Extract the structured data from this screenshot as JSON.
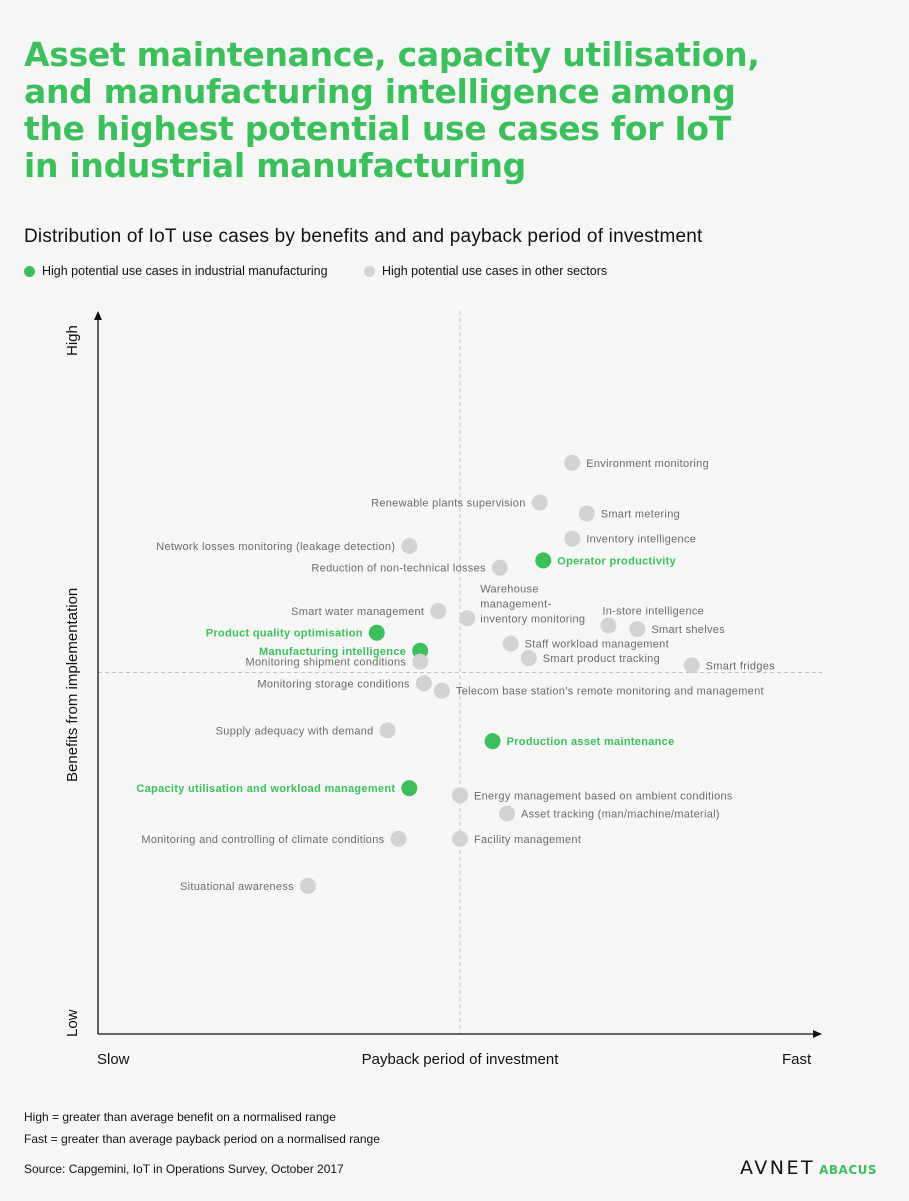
{
  "title_lines": [
    "Asset maintenance, capacity utilisation,",
    "and manufacturing intelligence among",
    "the highest potential use cases for IoT",
    "in industrial manufacturing"
  ],
  "subtitle": "Distribution of IoT use cases by benefits and and payback period of investment",
  "legend": [
    {
      "label": "High potential use cases in industrial manufacturing",
      "color": "#3cbf5c"
    },
    {
      "label": "High potential use cases in other sectors",
      "color": "#d3d3d3"
    }
  ],
  "colors": {
    "manufacturing": "#3cbf5c",
    "other": "#d3d3d3",
    "other_text": "#6b6b6b"
  },
  "chart_data": {
    "type": "scatter",
    "xlabel": "Payback period of investment",
    "ylabel": "Benefits from implementation",
    "x_ends": [
      "Slow",
      "Fast"
    ],
    "y_ends": [
      "Low",
      "High"
    ],
    "xlim": [
      0,
      100
    ],
    "ylim": [
      0,
      100
    ],
    "x_average": 50,
    "y_average": 50,
    "grid": false,
    "legend_position": "top-left",
    "series": [
      {
        "name": "High potential use cases in industrial manufacturing",
        "color": "#3cbf5c",
        "points": [
          {
            "label": "Operator productivity",
            "x": 61.5,
            "y": 65.5,
            "label_side": "right"
          },
          {
            "label": "Product quality optimisation",
            "x": 38.5,
            "y": 55.5,
            "label_side": "left"
          },
          {
            "label": "Manufacturing intelligence",
            "x": 44.5,
            "y": 53.0,
            "label_side": "left"
          },
          {
            "label": "Production asset maintenance",
            "x": 54.5,
            "y": 40.5,
            "label_side": "right"
          },
          {
            "label": "Capacity utilisation and workload management",
            "x": 43.0,
            "y": 34.0,
            "label_side": "left"
          }
        ]
      },
      {
        "name": "High potential use cases in other sectors",
        "color": "#d3d3d3",
        "points": [
          {
            "label": "Environment monitoring",
            "x": 65.5,
            "y": 79.0,
            "label_side": "right"
          },
          {
            "label": "Renewable plants supervision",
            "x": 61.0,
            "y": 73.5,
            "label_side": "left"
          },
          {
            "label": "Smart metering",
            "x": 67.5,
            "y": 72.0,
            "label_side": "right"
          },
          {
            "label": "Inventory intelligence",
            "x": 65.5,
            "y": 68.5,
            "label_side": "right"
          },
          {
            "label": "Network losses monitoring (leakage detection)",
            "x": 43.0,
            "y": 67.5,
            "label_side": "left"
          },
          {
            "label": "Reduction of non-technical losses",
            "x": 55.5,
            "y": 64.5,
            "label_side": "left"
          },
          {
            "label": "Smart water management",
            "x": 47.0,
            "y": 58.5,
            "label_side": "left"
          },
          {
            "label": "Warehouse management-inventory monitoring",
            "label_lines": [
              "Warehouse",
              "management-",
              "inventory monitoring"
            ],
            "x": 51.0,
            "y": 57.5,
            "label_side": "right-multi"
          },
          {
            "label": "In-store intelligence",
            "x": 70.5,
            "y": 56.5,
            "label_side": "right-above"
          },
          {
            "label": "Smart shelves",
            "x": 74.5,
            "y": 56.0,
            "label_side": "right"
          },
          {
            "label": "Staff workload management",
            "x": 57.0,
            "y": 54.0,
            "label_side": "right"
          },
          {
            "label": "Smart product tracking",
            "x": 59.5,
            "y": 52.0,
            "label_side": "right"
          },
          {
            "label": "Monitoring shipment conditions",
            "x": 44.5,
            "y": 51.5,
            "label_side": "left"
          },
          {
            "label": "Smart fridges",
            "x": 82.0,
            "y": 51.0,
            "label_side": "right"
          },
          {
            "label": "Monitoring storage conditions",
            "x": 45.0,
            "y": 48.5,
            "label_side": "left"
          },
          {
            "label": "Telecom base station’s remote monitoring and management",
            "x": 47.5,
            "y": 47.5,
            "label_side": "right"
          },
          {
            "label": "Supply adequacy with demand",
            "x": 40.0,
            "y": 42.0,
            "label_side": "left"
          },
          {
            "label": "Energy management based on ambient conditions",
            "x": 50.0,
            "y": 33.0,
            "label_side": "right"
          },
          {
            "label": "Asset tracking (man/machine/material)",
            "x": 56.5,
            "y": 30.5,
            "label_side": "right"
          },
          {
            "label": "Monitoring and controlling of climate conditions",
            "x": 41.5,
            "y": 27.0,
            "label_side": "left"
          },
          {
            "label": "Facility management",
            "x": 50.0,
            "y": 27.0,
            "label_side": "right"
          },
          {
            "label": "Situational awareness",
            "x": 29.0,
            "y": 20.5,
            "label_side": "left"
          }
        ]
      }
    ]
  },
  "notes": [
    "High = greater than average benefit on a normalised range",
    "Fast = greater than average payback period on a normalised range"
  ],
  "source": "Source: Capgemini, IoT in Operations Survey, October 2017",
  "logo": {
    "main": "AVNET",
    "sub": "ABACUS"
  }
}
